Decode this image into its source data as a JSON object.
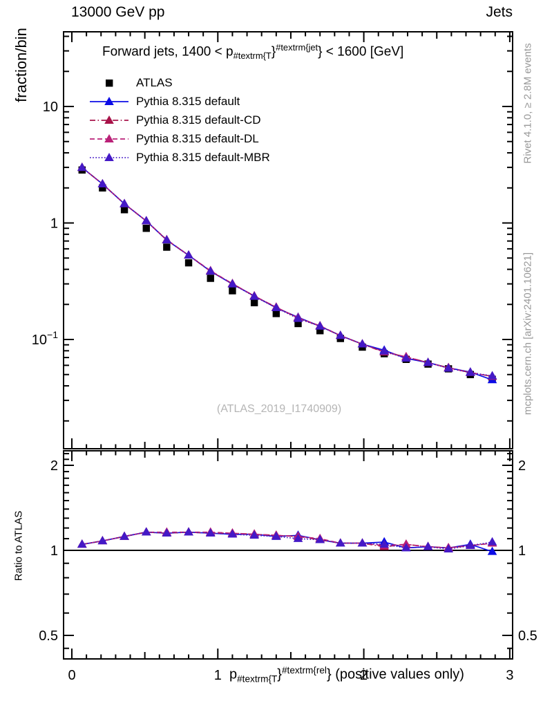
{
  "header": {
    "left": "13000 GeV pp",
    "right": "Jets"
  },
  "side_notes": {
    "top_right": "Rivet 4.1.0, ≥ 2.8M events",
    "bottom_right": "mcplots.cern.ch [arXiv:2401.10621]"
  },
  "watermark": "(ATLAS_2019_I1740909)",
  "title": {
    "prefix": "Forward jets, 1400 < p",
    "sub": "#textrm{T",
    "mid": "}",
    "sup": "#textrm{jet",
    "suffix": "} < 1600 [GeV]"
  },
  "xlabel": {
    "prefix": "p",
    "sub": "#textrm{T",
    "mid": "}",
    "sup": "#textrm{rel",
    "suffix": "} (positive values only)"
  },
  "axes": {
    "main_y_title": "fraction/bin",
    "ratio_y_title": "Ratio to ATLAS"
  },
  "colors": {
    "atlas": "#000000",
    "default": "#0c0ce6",
    "default_cd": "#a81349",
    "default_dl": "#ba2077",
    "default_mbr": "#4419c6",
    "frame": "#000000",
    "side_text": "#999999",
    "watermark": "#b5b5b5"
  },
  "chart_data": {
    "type": "line",
    "panels": [
      "main: fraction/bin vs pT-rel, log y",
      "ratio: MC/ATLAS, log y"
    ],
    "x_range": [
      -0.05,
      3.02
    ],
    "main_y_range": [
      0.0116,
      43
    ],
    "ratio_y_range": [
      0.41,
      2.26
    ],
    "legend_position": "top-left",
    "grid": false,
    "x": [
      0.07,
      0.21,
      0.36,
      0.51,
      0.65,
      0.8,
      0.95,
      1.1,
      1.25,
      1.4,
      1.55,
      1.7,
      1.84,
      1.99,
      2.14,
      2.29,
      2.44,
      2.58,
      2.73,
      2.88
    ],
    "series": [
      {
        "name": "ATLAS",
        "marker": "square",
        "color": "#000000",
        "line": "none",
        "values": [
          2.85,
          2.0,
          1.3,
          0.9,
          0.62,
          0.455,
          0.335,
          0.262,
          0.207,
          0.167,
          0.137,
          0.119,
          0.102,
          0.086,
          0.0755,
          0.0675,
          0.0615,
          0.056,
          0.05,
          0.0455
        ]
      },
      {
        "name": "Pythia 8.315 default",
        "marker": "triangle",
        "color": "#0c0ce6",
        "line": "solid",
        "values": [
          2.99,
          2.16,
          1.46,
          1.04,
          0.713,
          0.528,
          0.385,
          0.299,
          0.236,
          0.187,
          0.155,
          0.13,
          0.108,
          0.0912,
          0.0808,
          0.0689,
          0.0633,
          0.0571,
          0.0525,
          0.045
        ],
        "ratio": [
          1.05,
          1.08,
          1.12,
          1.16,
          1.15,
          1.16,
          1.15,
          1.14,
          1.14,
          1.12,
          1.13,
          1.09,
          1.06,
          1.06,
          1.07,
          1.02,
          1.03,
          1.02,
          1.05,
          0.99
        ]
      },
      {
        "name": "Pythia 8.315 default-CD",
        "marker": "triangle",
        "color": "#a81349",
        "line": "dashdot",
        "values": [
          2.99,
          2.16,
          1.46,
          1.04,
          0.713,
          0.528,
          0.385,
          0.301,
          0.236,
          0.189,
          0.153,
          0.13,
          0.108,
          0.0912,
          0.0778,
          0.0709,
          0.0633,
          0.0571,
          0.052,
          0.0482
        ],
        "ratio": [
          1.05,
          1.08,
          1.12,
          1.16,
          1.15,
          1.16,
          1.15,
          1.15,
          1.14,
          1.13,
          1.12,
          1.09,
          1.06,
          1.06,
          1.03,
          1.05,
          1.03,
          1.02,
          1.04,
          1.06
        ]
      },
      {
        "name": "Pythia 8.315 default-DL",
        "marker": "triangle",
        "color": "#ba2077",
        "line": "dashed",
        "values": [
          2.99,
          2.16,
          1.46,
          1.04,
          0.719,
          0.528,
          0.389,
          0.301,
          0.236,
          0.189,
          0.153,
          0.131,
          0.108,
          0.0912,
          0.0785,
          0.0709,
          0.0633,
          0.0571,
          0.052,
          0.0482
        ],
        "ratio": [
          1.05,
          1.08,
          1.12,
          1.16,
          1.16,
          1.16,
          1.16,
          1.15,
          1.14,
          1.13,
          1.12,
          1.1,
          1.06,
          1.06,
          1.04,
          1.05,
          1.03,
          1.02,
          1.04,
          1.06
        ]
      },
      {
        "name": "Pythia 8.315 default-MBR",
        "marker": "triangle",
        "color": "#4419c6",
        "line": "dotted",
        "values": [
          2.99,
          2.16,
          1.46,
          1.04,
          0.713,
          0.528,
          0.385,
          0.299,
          0.234,
          0.187,
          0.151,
          0.13,
          0.108,
          0.0912,
          0.0793,
          0.0689,
          0.0633,
          0.0566,
          0.052,
          0.0487
        ],
        "ratio": [
          1.05,
          1.08,
          1.12,
          1.16,
          1.15,
          1.16,
          1.15,
          1.14,
          1.13,
          1.12,
          1.1,
          1.09,
          1.06,
          1.06,
          1.05,
          1.02,
          1.03,
          1.01,
          1.04,
          1.07
        ]
      }
    ],
    "x_ticks": [
      {
        "label": "0",
        "value": 0
      },
      {
        "label": "1",
        "value": 1
      },
      {
        "label": "2",
        "value": 2
      },
      {
        "label": "3",
        "value": 3
      }
    ],
    "main_y_ticks": [
      {
        "label": "10",
        "value": 10
      },
      {
        "label": "1",
        "value": 1
      },
      {
        "label": "10",
        "sup": "−1",
        "value": 0.1
      }
    ],
    "ratio_y_ticks": [
      {
        "label": "2",
        "value": 2
      },
      {
        "label": "1",
        "value": 1
      },
      {
        "label": "0.5",
        "value": 0.5
      }
    ]
  }
}
